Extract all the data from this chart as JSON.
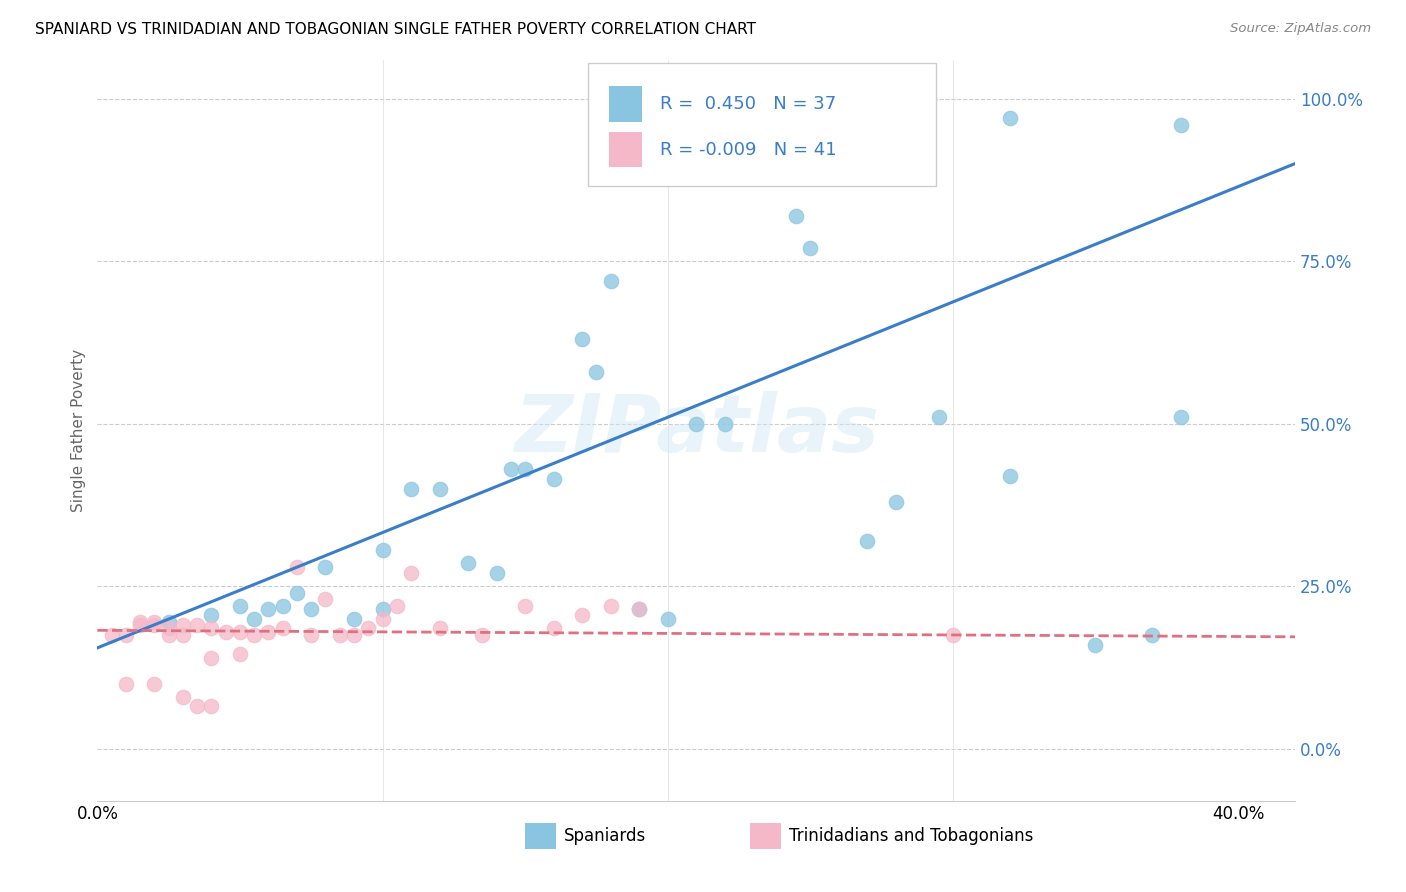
{
  "title": "SPANIARD VS TRINIDADIAN AND TOBAGONIAN SINGLE FATHER POVERTY CORRELATION CHART",
  "source": "Source: ZipAtlas.com",
  "ylabel": "Single Father Poverty",
  "ytick_vals": [
    0.0,
    0.25,
    0.5,
    0.75,
    1.0
  ],
  "ytick_labels": [
    "0.0%",
    "25.0%",
    "50.0%",
    "75.0%",
    "100.0%"
  ],
  "xtick_vals": [
    0.0,
    0.1,
    0.2,
    0.3,
    0.4
  ],
  "xtick_labels": [
    "0.0%",
    "",
    "",
    "",
    "40.0%"
  ],
  "xrange": [
    0.0,
    0.42
  ],
  "yrange": [
    -0.08,
    1.06
  ],
  "legend_label1": "Spaniards",
  "legend_label2": "Trinidadians and Tobagonians",
  "color_blue": "#89c4e1",
  "color_pink": "#f4b8c8",
  "line_blue": "#3a7dc9",
  "line_pink": "#e07080",
  "text_blue": "#3a7dc9",
  "watermark": "ZIPatlas",
  "blue_scatter_x": [
    0.025,
    0.04,
    0.05,
    0.055,
    0.06,
    0.065,
    0.07,
    0.075,
    0.08,
    0.09,
    0.1,
    0.1,
    0.11,
    0.12,
    0.13,
    0.14,
    0.145,
    0.15,
    0.16,
    0.17,
    0.175,
    0.18,
    0.19,
    0.2,
    0.21,
    0.22,
    0.245,
    0.25,
    0.27,
    0.28,
    0.295,
    0.32,
    0.32,
    0.35,
    0.37,
    0.38,
    0.38
  ],
  "blue_scatter_y": [
    0.195,
    0.205,
    0.22,
    0.2,
    0.215,
    0.22,
    0.24,
    0.215,
    0.28,
    0.2,
    0.305,
    0.215,
    0.4,
    0.4,
    0.285,
    0.27,
    0.43,
    0.43,
    0.415,
    0.63,
    0.58,
    0.72,
    0.215,
    0.2,
    0.5,
    0.5,
    0.82,
    0.77,
    0.32,
    0.38,
    0.51,
    0.42,
    0.97,
    0.16,
    0.175,
    0.51,
    0.96
  ],
  "pink_scatter_x": [
    0.005,
    0.01,
    0.01,
    0.015,
    0.015,
    0.02,
    0.02,
    0.02,
    0.025,
    0.025,
    0.03,
    0.03,
    0.03,
    0.035,
    0.035,
    0.04,
    0.04,
    0.04,
    0.045,
    0.05,
    0.05,
    0.055,
    0.06,
    0.065,
    0.07,
    0.075,
    0.08,
    0.085,
    0.09,
    0.095,
    0.1,
    0.105,
    0.11,
    0.12,
    0.135,
    0.15,
    0.16,
    0.17,
    0.18,
    0.19,
    0.3
  ],
  "pink_scatter_y": [
    0.175,
    0.175,
    0.1,
    0.19,
    0.195,
    0.19,
    0.195,
    0.1,
    0.185,
    0.175,
    0.19,
    0.175,
    0.08,
    0.19,
    0.065,
    0.185,
    0.14,
    0.065,
    0.18,
    0.18,
    0.145,
    0.175,
    0.18,
    0.185,
    0.28,
    0.175,
    0.23,
    0.175,
    0.175,
    0.185,
    0.2,
    0.22,
    0.27,
    0.185,
    0.175,
    0.22,
    0.185,
    0.205,
    0.22,
    0.215,
    0.175
  ],
  "blue_line_x": [
    0.0,
    0.42
  ],
  "blue_line_y": [
    0.155,
    0.9
  ],
  "pink_line_x": [
    0.0,
    0.42
  ],
  "pink_line_y": [
    0.182,
    0.172
  ]
}
